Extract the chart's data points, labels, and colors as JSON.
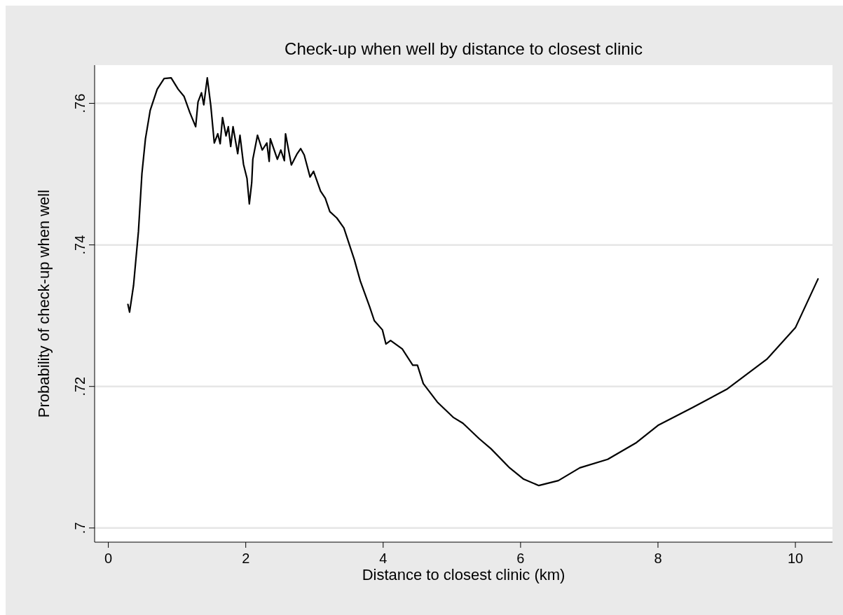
{
  "chart_data": {
    "type": "line",
    "title": "Check-up when well by distance to closest clinic",
    "xlabel": "Distance to closest clinic (km)",
    "ylabel": "Probability of check-up when well",
    "xlim": [
      -0.2,
      10.54
    ],
    "ylim": [
      0.698,
      0.7654
    ],
    "xticks": [
      0,
      2,
      4,
      6,
      8,
      10
    ],
    "yticks": [
      {
        "value": 0.7,
        "label": ".7"
      },
      {
        "value": 0.72,
        "label": ".72"
      },
      {
        "value": 0.74,
        "label": ".74"
      },
      {
        "value": 0.76,
        "label": ".76"
      }
    ],
    "grid": "y",
    "series": [
      {
        "color": "#000000",
        "x": [
          0.285,
          0.309,
          0.367,
          0.438,
          0.489,
          0.54,
          0.609,
          0.711,
          0.812,
          0.914,
          1.016,
          1.101,
          1.186,
          1.271,
          1.305,
          1.356,
          1.389,
          1.44,
          1.491,
          1.542,
          1.593,
          1.628,
          1.662,
          1.713,
          1.746,
          1.781,
          1.815,
          1.883,
          1.916,
          1.967,
          2.018,
          2.052,
          2.087,
          2.103,
          2.171,
          2.24,
          2.307,
          2.341,
          2.358,
          2.46,
          2.511,
          2.562,
          2.579,
          2.664,
          2.749,
          2.8,
          2.851,
          2.936,
          2.987,
          3.089,
          3.157,
          3.224,
          3.326,
          3.428,
          3.581,
          3.667,
          3.802,
          3.871,
          3.989,
          4.04,
          4.108,
          4.278,
          4.431,
          4.499,
          4.584,
          4.788,
          5.025,
          5.161,
          5.4,
          5.569,
          5.841,
          6.045,
          6.266,
          6.55,
          6.862,
          7.268,
          7.676,
          8.0,
          8.5,
          9.0,
          9.59,
          10.0,
          10.33
        ],
        "values": [
          0.7316,
          0.7305,
          0.7343,
          0.7419,
          0.7501,
          0.755,
          0.759,
          0.762,
          0.7635,
          0.7636,
          0.762,
          0.761,
          0.7587,
          0.7567,
          0.7602,
          0.7615,
          0.7598,
          0.7636,
          0.7597,
          0.7544,
          0.7557,
          0.7543,
          0.758,
          0.7554,
          0.7567,
          0.7539,
          0.7567,
          0.7529,
          0.7555,
          0.7514,
          0.7494,
          0.7458,
          0.7488,
          0.7521,
          0.7555,
          0.7534,
          0.7544,
          0.7518,
          0.755,
          0.7521,
          0.7534,
          0.7519,
          0.7557,
          0.7513,
          0.7529,
          0.7536,
          0.7527,
          0.7496,
          0.7504,
          0.7476,
          0.7466,
          0.7447,
          0.7438,
          0.7424,
          0.7379,
          0.7349,
          0.7313,
          0.7293,
          0.728,
          0.726,
          0.7265,
          0.7253,
          0.723,
          0.723,
          0.7204,
          0.7178,
          0.7156,
          0.7148,
          0.7126,
          0.7112,
          0.7085,
          0.7069,
          0.706,
          0.7067,
          0.7085,
          0.7097,
          0.712,
          0.7145,
          0.717,
          0.7196,
          0.7239,
          0.7283,
          0.7352
        ]
      }
    ]
  }
}
